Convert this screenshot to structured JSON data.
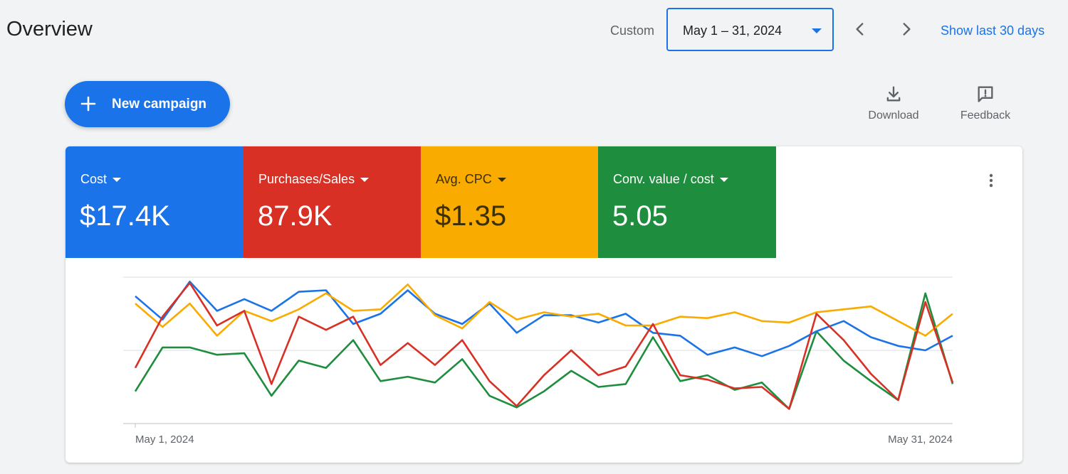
{
  "header": {
    "title": "Overview",
    "custom_label": "Custom",
    "date_range": "May 1 – 31, 2024",
    "show_last": "Show last 30 days"
  },
  "toolbar": {
    "new_campaign_label": "New campaign",
    "download_label": "Download",
    "feedback_label": "Feedback"
  },
  "metrics": [
    {
      "name": "Cost",
      "value": "$17.4K",
      "color": "#1a73e8"
    },
    {
      "name": "Purchases/Sales",
      "value": "87.9K",
      "color": "#d93025"
    },
    {
      "name": "Avg. CPC",
      "value": "$1.35",
      "color": "#f9ab00"
    },
    {
      "name": "Conv. value / cost",
      "value": "5.05",
      "color": "#1e8e3e"
    }
  ],
  "chart_data": {
    "type": "line",
    "x_start_label": "May 1, 2024",
    "x_end_label": "May 31, 2024",
    "x": [
      1,
      2,
      3,
      4,
      5,
      6,
      7,
      8,
      9,
      10,
      11,
      12,
      13,
      14,
      15,
      16,
      17,
      18,
      19,
      20,
      21,
      22,
      23,
      24,
      25,
      26,
      27,
      28,
      29,
      30,
      31
    ],
    "ylim": [
      0,
      100
    ],
    "grid": true,
    "series": [
      {
        "metric": "Cost",
        "color": "#1a73e8",
        "values": [
          87,
          71,
          97,
          77,
          85,
          77,
          90,
          91,
          68,
          75,
          91,
          75,
          68,
          82,
          62,
          74,
          74,
          69,
          75,
          62,
          60,
          47,
          52,
          46,
          53,
          63,
          70,
          59,
          53,
          50,
          60
        ]
      },
      {
        "metric": "Purchases/Sales",
        "color": "#d93025",
        "values": [
          38,
          73,
          96,
          67,
          77,
          27,
          73,
          64,
          73,
          40,
          55,
          40,
          57,
          29,
          12,
          33,
          50,
          33,
          39,
          68,
          33,
          30,
          24,
          25,
          10,
          75,
          57,
          34,
          16,
          83,
          28
        ]
      },
      {
        "metric": "Avg. CPC",
        "color": "#f9ab00",
        "values": [
          82,
          66,
          82,
          60,
          77,
          70,
          78,
          89,
          77,
          78,
          95,
          74,
          65,
          83,
          71,
          76,
          73,
          75,
          67,
          67,
          73,
          72,
          76,
          70,
          69,
          76,
          78,
          80,
          70,
          60,
          75
        ]
      },
      {
        "metric": "Conv. value / cost",
        "color": "#1e8e3e",
        "values": [
          22,
          52,
          52,
          47,
          48,
          19,
          43,
          38,
          57,
          29,
          32,
          28,
          44,
          19,
          11,
          22,
          36,
          25,
          27,
          59,
          29,
          33,
          23,
          28,
          10,
          63,
          43,
          29,
          16,
          89,
          27
        ]
      }
    ]
  }
}
